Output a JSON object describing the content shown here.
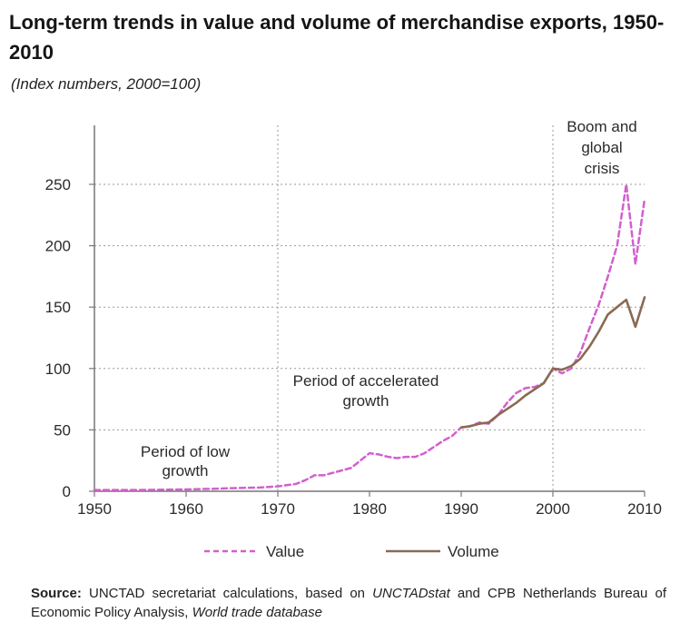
{
  "title": "Long-term trends in value and volume of merchandise exports, 1950-2010",
  "subtitle": "(Index numbers, 2000=100)",
  "source": {
    "label": "Source:",
    "part1": "UNCTAD secretariat calculations, based on",
    "italic1": "UNCTADstat",
    "part2": "and CPB Netherlands Bureau of Economic Policy Analysis,",
    "italic2": "World trade database"
  },
  "colors": {
    "value": "#d35fcf",
    "volume": "#8a6a52",
    "grid": "#9a9a9a",
    "axis": "#777777"
  },
  "chart_data": {
    "type": "line",
    "xlim": [
      1950,
      2010
    ],
    "ylim": [
      0,
      270
    ],
    "xticks": [
      1950,
      1960,
      1970,
      1980,
      1990,
      2000,
      2010
    ],
    "yticks": [
      0,
      50,
      100,
      150,
      200,
      250
    ],
    "grid": "dotted horizontal at y ticks; dotted vertical at 1970 and 2000",
    "legend": "bottom-center",
    "annotations": [
      {
        "lines": [
          "Period of low",
          "growth"
        ]
      },
      {
        "lines": [
          "Period of accelerated",
          "growth"
        ]
      },
      {
        "lines": [
          "Boom and",
          "global",
          "crisis"
        ]
      }
    ],
    "series": [
      {
        "name": "Value",
        "style": "dashed",
        "x": [
          1950,
          1955,
          1960,
          1963,
          1965,
          1968,
          1970,
          1972,
          1973,
          1974,
          1975,
          1976,
          1977,
          1978,
          1979,
          1980,
          1981,
          1982,
          1983,
          1984,
          1985,
          1986,
          1987,
          1988,
          1989,
          1990,
          1991,
          1992,
          1993,
          1994,
          1995,
          1996,
          1997,
          1998,
          1999,
          2000,
          2001,
          2002,
          2003,
          2004,
          2005,
          2006,
          2007,
          2008,
          2009,
          2010
        ],
        "values": [
          1,
          1,
          1.5,
          2,
          2.5,
          3,
          4,
          6,
          9,
          13,
          13,
          15,
          17,
          19,
          25,
          31,
          30,
          28,
          27,
          28,
          28,
          31,
          36,
          41,
          45,
          52,
          53,
          56,
          55,
          62,
          72,
          80,
          84,
          85,
          88,
          100,
          96,
          100,
          113,
          133,
          152,
          175,
          200,
          250,
          185,
          238
        ]
      },
      {
        "name": "Volume",
        "style": "solid",
        "x": [
          1990,
          1991,
          1992,
          1993,
          1994,
          1995,
          1996,
          1997,
          1998,
          1999,
          2000,
          2001,
          2002,
          2003,
          2004,
          2005,
          2006,
          2007,
          2008,
          2009,
          2010
        ],
        "values": [
          52,
          53,
          55,
          56,
          62,
          67,
          72,
          78,
          83,
          88,
          100,
          99,
          102,
          108,
          118,
          130,
          144,
          150,
          156,
          134,
          158
        ]
      }
    ]
  }
}
